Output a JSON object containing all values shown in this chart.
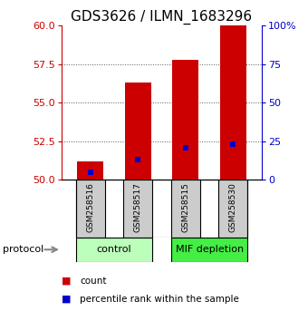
{
  "title": "GDS3626 / ILMN_1683296",
  "samples": [
    "GSM258516",
    "GSM258517",
    "GSM258515",
    "GSM258530"
  ],
  "bar_values": [
    51.2,
    56.3,
    57.8,
    60.0
  ],
  "percentile_values": [
    50.5,
    51.3,
    52.1,
    52.3
  ],
  "ylim_left": [
    50,
    60
  ],
  "ylim_right": [
    0,
    100
  ],
  "yticks_left": [
    50,
    52.5,
    55,
    57.5,
    60
  ],
  "yticks_right": [
    0,
    25,
    50,
    75,
    100
  ],
  "bar_color": "#cc0000",
  "percentile_color": "#0000cc",
  "bar_width": 0.55,
  "groups": [
    {
      "label": "control",
      "samples": [
        0,
        1
      ],
      "color": "#bbffbb"
    },
    {
      "label": "MIF depletion",
      "samples": [
        2,
        3
      ],
      "color": "#44ee44"
    }
  ],
  "tick_area_color": "#cccccc",
  "protocol_label": "protocol",
  "legend_count_label": "count",
  "legend_percentile_label": "percentile rank within the sample",
  "grid_color": "#555555",
  "title_fontsize": 11,
  "axis_fontsize": 8,
  "label_fontsize": 7.5
}
